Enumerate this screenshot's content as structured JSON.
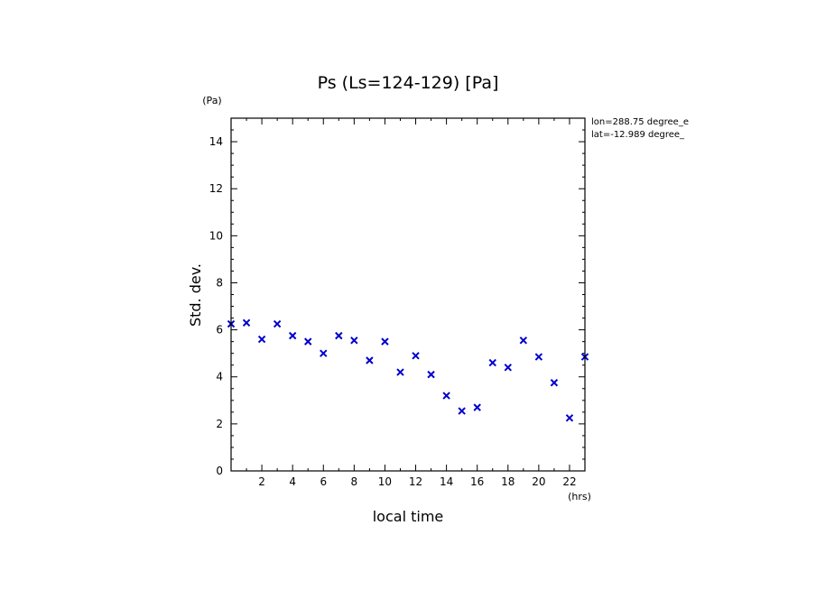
{
  "chart_data": {
    "type": "scatter",
    "title": "Ps (Ls=124-129) [Pa]",
    "xlabel": "local time",
    "ylabel": "Std. dev.",
    "x_unit": "(hrs)",
    "y_unit": "(Pa)",
    "xlim": [
      0,
      23
    ],
    "ylim": [
      0,
      15
    ],
    "x_ticks": [
      2,
      4,
      6,
      8,
      10,
      12,
      14,
      16,
      18,
      20,
      22
    ],
    "y_ticks": [
      0,
      2,
      4,
      6,
      8,
      10,
      12,
      14
    ],
    "x_tick_labels": [
      "2",
      "4",
      "6",
      "8",
      "10",
      "12",
      "14",
      "16",
      "18",
      "20",
      "22"
    ],
    "y_tick_labels": [
      "0",
      "2",
      "4",
      "6",
      "8",
      "10",
      "12",
      "14"
    ],
    "marker": "x",
    "marker_color": "#0000cc",
    "grid": false,
    "annotations": [
      "lon=288.75 degree_e",
      "lat=-12.989 degree_"
    ],
    "series": [
      {
        "x": [
          0,
          1,
          2,
          3,
          4,
          5,
          6,
          7,
          8,
          9,
          10,
          11,
          12,
          13,
          14,
          15,
          16,
          17,
          18,
          19,
          20,
          21,
          22,
          23
        ],
        "y": [
          6.25,
          6.3,
          5.6,
          6.25,
          5.75,
          5.5,
          5.0,
          5.75,
          5.55,
          4.7,
          5.5,
          4.2,
          4.9,
          4.1,
          3.2,
          2.55,
          2.7,
          4.6,
          4.4,
          5.55,
          4.85,
          3.75,
          2.25,
          4.85
        ]
      }
    ]
  }
}
